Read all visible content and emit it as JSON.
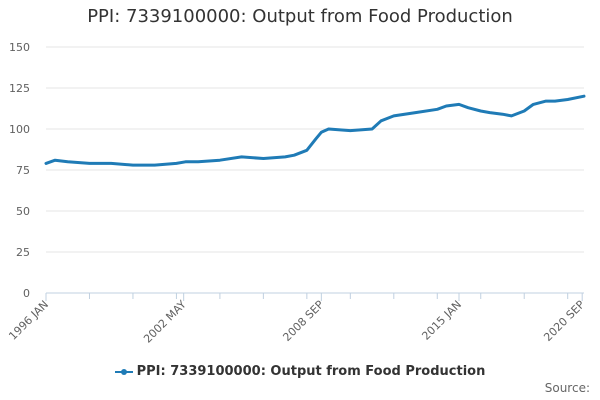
{
  "chart_data": {
    "type": "line",
    "title": "PPI: 7339100000: Output from Food Production",
    "xlabel": "",
    "ylabel": "",
    "ylim": [
      0,
      150
    ],
    "yticks": [
      0,
      25,
      50,
      75,
      100,
      125,
      150
    ],
    "xlim": [
      "1996-01",
      "2020-10"
    ],
    "xtick_labels": [
      "1996 JAN",
      "2002 MAY",
      "2008 SEP",
      "2015 JAN",
      "2020 SEP"
    ],
    "xtick_dates": [
      "1996-01",
      "2002-05",
      "2008-09",
      "2015-01",
      "2020-09"
    ],
    "grid": true,
    "legend_position": "bottom",
    "series": [
      {
        "name": "PPI: 7339100000: Output from Food Production",
        "color": "#1f7bb6",
        "x": [
          "1996-01",
          "1996-06",
          "1997-01",
          "1998-01",
          "1999-01",
          "2000-01",
          "2001-01",
          "2002-01",
          "2002-06",
          "2003-01",
          "2004-01",
          "2005-01",
          "2006-01",
          "2007-01",
          "2007-06",
          "2008-01",
          "2008-06",
          "2008-09",
          "2009-01",
          "2010-01",
          "2011-01",
          "2011-06",
          "2012-01",
          "2013-01",
          "2014-01",
          "2014-06",
          "2015-01",
          "2015-06",
          "2016-01",
          "2016-06",
          "2017-01",
          "2017-06",
          "2018-01",
          "2018-06",
          "2019-01",
          "2019-06",
          "2020-01",
          "2020-10"
        ],
        "y": [
          79,
          81,
          80,
          79,
          79,
          78,
          78,
          79,
          80,
          80,
          81,
          83,
          82,
          83,
          84,
          87,
          94,
          98,
          100,
          99,
          100,
          105,
          108,
          110,
          112,
          114,
          115,
          113,
          111,
          110,
          109,
          108,
          111,
          115,
          117,
          117,
          118,
          120
        ]
      }
    ]
  },
  "source_label": "Source:"
}
